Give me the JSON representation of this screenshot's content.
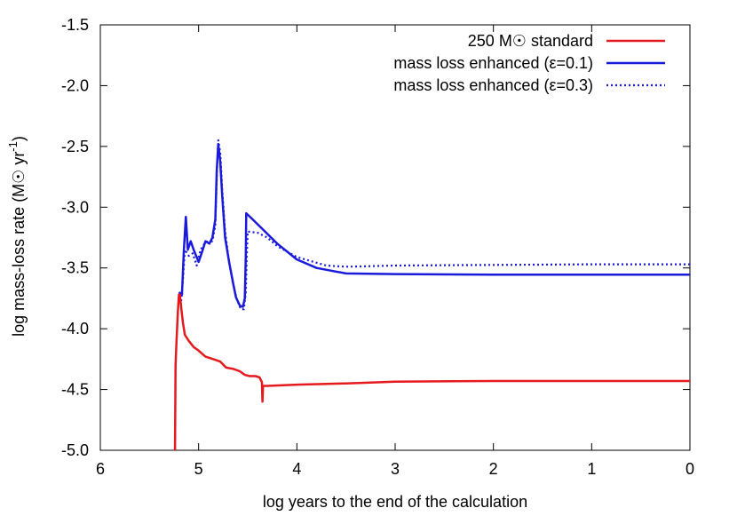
{
  "chart_data": {
    "type": "line",
    "xlabel": "log years to the end of the calculation",
    "ylabel": "log mass-loss rate (M☉ yr",
    "ylabel_sup": "-1",
    "ylabel_end": ")",
    "xlim": [
      6,
      0
    ],
    "ylim": [
      -5.0,
      -1.5
    ],
    "xticks": [
      6,
      5,
      4,
      3,
      2,
      1,
      0
    ],
    "xtick_labels": [
      "6",
      "5",
      "4",
      "3",
      "2",
      "1",
      "0"
    ],
    "yticks": [
      -1.5,
      -2.0,
      -2.5,
      -3.0,
      -3.5,
      -4.0,
      -4.5,
      -5.0
    ],
    "ytick_labels": [
      "-1.5",
      "-2.0",
      "-2.5",
      "-3.0",
      "-3.5",
      "-4.0",
      "-4.5",
      "-5.0"
    ],
    "grid": false,
    "legend_position": "top-right",
    "series": [
      {
        "name": "250 M☉ standard",
        "color": "#e41a1c",
        "style": "solid",
        "points": [
          [
            5.24,
            -5.0
          ],
          [
            5.235,
            -4.3
          ],
          [
            5.225,
            -4.1
          ],
          [
            5.21,
            -3.85
          ],
          [
            5.2,
            -3.72
          ],
          [
            5.19,
            -3.72
          ],
          [
            5.18,
            -3.8
          ],
          [
            5.16,
            -3.95
          ],
          [
            5.14,
            -4.05
          ],
          [
            5.1,
            -4.1
          ],
          [
            5.05,
            -4.15
          ],
          [
            5.0,
            -4.18
          ],
          [
            4.93,
            -4.23
          ],
          [
            4.85,
            -4.25
          ],
          [
            4.78,
            -4.27
          ],
          [
            4.72,
            -4.32
          ],
          [
            4.65,
            -4.33
          ],
          [
            4.58,
            -4.35
          ],
          [
            4.53,
            -4.38
          ],
          [
            4.48,
            -4.39
          ],
          [
            4.42,
            -4.39
          ],
          [
            4.38,
            -4.4
          ],
          [
            4.355,
            -4.44
          ],
          [
            4.35,
            -4.6
          ],
          [
            4.345,
            -4.47
          ],
          [
            4.3,
            -4.47
          ],
          [
            4.0,
            -4.46
          ],
          [
            3.5,
            -4.45
          ],
          [
            3.0,
            -4.435
          ],
          [
            2.0,
            -4.43
          ],
          [
            1.0,
            -4.43
          ],
          [
            0.0,
            -4.43
          ]
        ]
      },
      {
        "name": "mass loss enhanced (ε=0.1)",
        "color": "#1a1adb",
        "style": "solid",
        "points": [
          [
            5.2,
            -3.7
          ],
          [
            5.17,
            -3.72
          ],
          [
            5.15,
            -3.35
          ],
          [
            5.13,
            -3.08
          ],
          [
            5.11,
            -3.35
          ],
          [
            5.08,
            -3.28
          ],
          [
            5.05,
            -3.35
          ],
          [
            5.0,
            -3.45
          ],
          [
            4.97,
            -3.38
          ],
          [
            4.93,
            -3.28
          ],
          [
            4.89,
            -3.3
          ],
          [
            4.86,
            -3.25
          ],
          [
            4.83,
            -3.1
          ],
          [
            4.815,
            -2.7
          ],
          [
            4.8,
            -2.48
          ],
          [
            4.78,
            -2.62
          ],
          [
            4.76,
            -2.9
          ],
          [
            4.73,
            -3.25
          ],
          [
            4.69,
            -3.45
          ],
          [
            4.65,
            -3.62
          ],
          [
            4.62,
            -3.74
          ],
          [
            4.58,
            -3.81
          ],
          [
            4.55,
            -3.82
          ],
          [
            4.53,
            -3.75
          ],
          [
            4.52,
            -3.4
          ],
          [
            4.515,
            -3.05
          ],
          [
            4.45,
            -3.1
          ],
          [
            4.35,
            -3.18
          ],
          [
            4.2,
            -3.3
          ],
          [
            4.0,
            -3.43
          ],
          [
            3.8,
            -3.5
          ],
          [
            3.5,
            -3.545
          ],
          [
            3.0,
            -3.55
          ],
          [
            2.0,
            -3.555
          ],
          [
            1.0,
            -3.555
          ],
          [
            0.0,
            -3.555
          ]
        ]
      },
      {
        "name": "mass loss enhanced (ε=0.3)",
        "color": "#1a1adb",
        "style": "dotted",
        "points": [
          [
            5.2,
            -3.72
          ],
          [
            5.18,
            -3.8
          ],
          [
            5.16,
            -3.6
          ],
          [
            5.14,
            -3.35
          ],
          [
            5.1,
            -3.4
          ],
          [
            5.06,
            -3.38
          ],
          [
            5.02,
            -3.48
          ],
          [
            4.98,
            -3.35
          ],
          [
            4.94,
            -3.3
          ],
          [
            4.9,
            -3.28
          ],
          [
            4.86,
            -3.28
          ],
          [
            4.83,
            -3.15
          ],
          [
            4.815,
            -2.75
          ],
          [
            4.8,
            -2.45
          ],
          [
            4.78,
            -2.55
          ],
          [
            4.76,
            -2.85
          ],
          [
            4.73,
            -3.2
          ],
          [
            4.69,
            -3.45
          ],
          [
            4.65,
            -3.63
          ],
          [
            4.61,
            -3.76
          ],
          [
            4.57,
            -3.84
          ],
          [
            4.54,
            -3.84
          ],
          [
            4.52,
            -3.7
          ],
          [
            4.51,
            -3.4
          ],
          [
            4.5,
            -3.2
          ],
          [
            4.4,
            -3.21
          ],
          [
            4.3,
            -3.25
          ],
          [
            4.2,
            -3.32
          ],
          [
            4.0,
            -3.41
          ],
          [
            3.7,
            -3.48
          ],
          [
            3.5,
            -3.49
          ],
          [
            3.4,
            -3.488
          ],
          [
            3.0,
            -3.48
          ],
          [
            2.0,
            -3.475
          ],
          [
            1.0,
            -3.47
          ],
          [
            0.0,
            -3.47
          ]
        ]
      }
    ]
  }
}
